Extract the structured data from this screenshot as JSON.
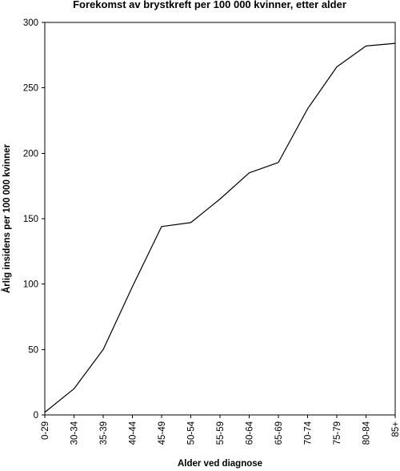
{
  "chart_data": {
    "type": "line",
    "title": "Forekomst av brystkreft per 100 000 kvinner, etter  alder",
    "xlabel": "Alder ved diagnose",
    "ylabel": "Årlig insidens per 100 000 kvinner",
    "categories": [
      "0-29",
      "30-34",
      "35-39",
      "40-44",
      "45-49",
      "50-54",
      "55-59",
      "60-64",
      "65-69",
      "70-74",
      "75-79",
      "80-84",
      "85+"
    ],
    "series": [
      {
        "values": [
          2,
          20,
          50,
          98,
          144,
          147,
          165,
          185,
          193,
          234,
          266,
          282,
          284
        ],
        "color": "#000000"
      }
    ],
    "ylim": [
      0,
      300
    ],
    "yticks": [
      0,
      50,
      100,
      150,
      200,
      250,
      300
    ],
    "grid": false,
    "legend": "none"
  }
}
